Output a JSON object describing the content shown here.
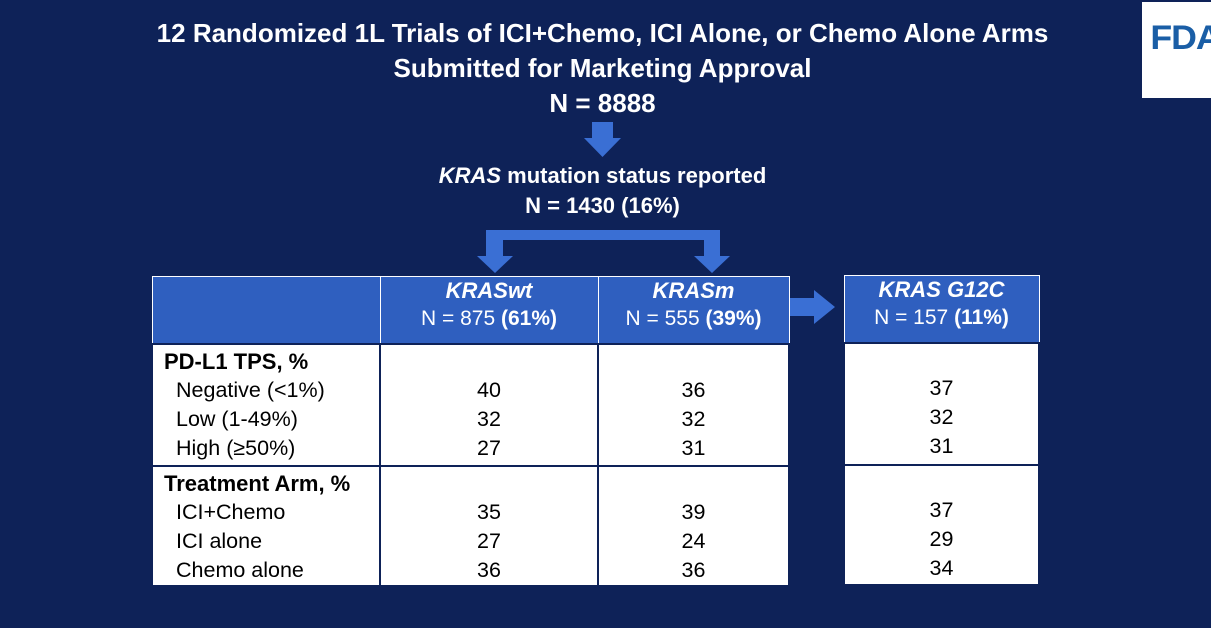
{
  "title": {
    "line1": "12 Randomized 1L Trials of ICI+Chemo, ICI Alone, or Chemo Alone Arms",
    "line2": "Submitted for Marketing Approval",
    "line3": "N = 8888"
  },
  "logo": {
    "text": "FDA"
  },
  "kras_reported": {
    "italic": "KRAS",
    "rest": " mutation status reported",
    "n": "N = 1430 (16%)"
  },
  "columns": [
    {
      "name": "KRASwt",
      "n_prefix": "N = 875 ",
      "n_pct": "(61%)"
    },
    {
      "name": "KRASm",
      "n_prefix": "N = 555 ",
      "n_pct": "(39%)"
    },
    {
      "name": "KRAS G12C",
      "n_prefix": "N = 157 ",
      "n_pct": "(11%)"
    }
  ],
  "sections": [
    {
      "title": "PD-L1 TPS, %",
      "rows": [
        {
          "label": "Negative (<1%)",
          "wt": "40",
          "m": "36",
          "g12c": "37"
        },
        {
          "label": "Low (1-49%)",
          "wt": "32",
          "m": "32",
          "g12c": "32"
        },
        {
          "label": "High (≥50%)",
          "wt": "27",
          "m": "31",
          "g12c": "31"
        }
      ]
    },
    {
      "title": "Treatment Arm, %",
      "rows": [
        {
          "label": "ICI+Chemo",
          "wt": "35",
          "m": "39",
          "g12c": "37"
        },
        {
          "label": "ICI alone",
          "wt": "27",
          "m": "24",
          "g12c": "29"
        },
        {
          "label": "Chemo alone",
          "wt": "36",
          "m": "36",
          "g12c": "34"
        }
      ]
    }
  ],
  "colors": {
    "background": "#0e2258",
    "header": "#2f5fbf",
    "arrow": "#3a6fd4",
    "logo": "#1a5ea6"
  }
}
